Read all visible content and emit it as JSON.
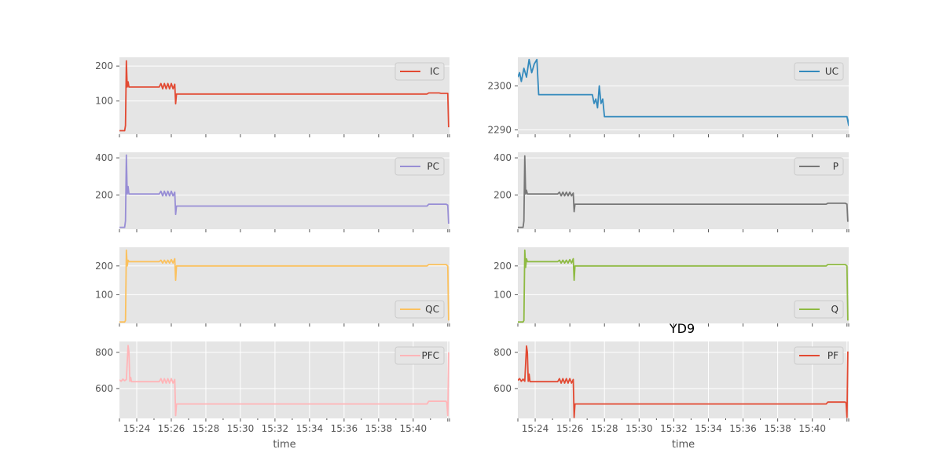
{
  "figure": {
    "title": "YD9"
  },
  "chart_data": [
    {
      "type": "line",
      "series": [
        {
          "name": "IC",
          "color": "#E24A33",
          "points": [
            [
              0,
              15
            ],
            [
              0.3,
              15
            ],
            [
              0.35,
              30
            ],
            [
              0.4,
              215
            ],
            [
              0.45,
              140
            ],
            [
              0.5,
              155
            ],
            [
              0.55,
              140
            ],
            [
              2.3,
              140
            ],
            [
              2.4,
              150
            ],
            [
              2.5,
              135
            ],
            [
              2.6,
              150
            ],
            [
              2.7,
              135
            ],
            [
              2.8,
              150
            ],
            [
              2.9,
              135
            ],
            [
              3,
              150
            ],
            [
              3.1,
              135
            ],
            [
              3.2,
              148
            ],
            [
              3.25,
              92
            ],
            [
              3.3,
              120
            ],
            [
              17.8,
              120
            ],
            [
              17.9,
              123
            ],
            [
              18.5,
              123
            ],
            [
              18.6,
              122
            ],
            [
              19,
              122
            ],
            [
              19.05,
              25
            ]
          ]
        }
      ],
      "ylim": [
        5,
        225
      ],
      "yticks": [
        100,
        200
      ],
      "xlim": [
        0,
        19.1
      ],
      "xticks_show_labels": false,
      "xlabel": ""
    },
    {
      "type": "line",
      "series": [
        {
          "name": "UC",
          "color": "#348ABD",
          "points": [
            [
              0,
              2302
            ],
            [
              0.1,
              2303
            ],
            [
              0.2,
              2301
            ],
            [
              0.35,
              2304
            ],
            [
              0.5,
              2302
            ],
            [
              0.65,
              2306
            ],
            [
              0.8,
              2303
            ],
            [
              0.95,
              2305
            ],
            [
              1.1,
              2306
            ],
            [
              1.2,
              2298
            ],
            [
              4.3,
              2298
            ],
            [
              4.4,
              2296
            ],
            [
              4.5,
              2297
            ],
            [
              4.6,
              2295
            ],
            [
              4.7,
              2300
            ],
            [
              4.8,
              2296
            ],
            [
              4.9,
              2297
            ],
            [
              5.0,
              2293
            ],
            [
              19,
              2293
            ],
            [
              19.1,
              2291
            ],
            [
              19.2,
              2296
            ],
            [
              19.3,
              2292
            ],
            [
              19.4,
              2293
            ]
          ]
        }
      ],
      "ylim": [
        2289,
        2306.5
      ],
      "yticks": [
        2290,
        2300
      ],
      "xlim": [
        0,
        19.1
      ],
      "xticks_show_labels": false,
      "xlabel": ""
    },
    {
      "type": "line",
      "series": [
        {
          "name": "PC",
          "color": "#988ED5",
          "points": [
            [
              0,
              25
            ],
            [
              0.3,
              25
            ],
            [
              0.35,
              60
            ],
            [
              0.4,
              415
            ],
            [
              0.45,
              205
            ],
            [
              0.5,
              245
            ],
            [
              0.55,
              205
            ],
            [
              2.3,
              205
            ],
            [
              2.4,
              220
            ],
            [
              2.5,
              195
            ],
            [
              2.6,
              220
            ],
            [
              2.7,
              195
            ],
            [
              2.8,
              220
            ],
            [
              2.9,
              195
            ],
            [
              3,
              220
            ],
            [
              3.1,
              195
            ],
            [
              3.2,
              215
            ],
            [
              3.25,
              95
            ],
            [
              3.3,
              140
            ],
            [
              17.8,
              140
            ],
            [
              17.9,
              150
            ],
            [
              18.9,
              150
            ],
            [
              19,
              145
            ],
            [
              19.05,
              45
            ]
          ]
        }
      ],
      "ylim": [
        15,
        430
      ],
      "yticks": [
        200,
        400
      ],
      "xlim": [
        0,
        19.1
      ],
      "xticks_show_labels": false,
      "xlabel": ""
    },
    {
      "type": "line",
      "series": [
        {
          "name": "P",
          "color": "#777777",
          "points": [
            [
              0,
              25
            ],
            [
              0.3,
              25
            ],
            [
              0.35,
              60
            ],
            [
              0.4,
              410
            ],
            [
              0.45,
              205
            ],
            [
              0.5,
              225
            ],
            [
              0.55,
              205
            ],
            [
              2.3,
              205
            ],
            [
              2.4,
              215
            ],
            [
              2.5,
              195
            ],
            [
              2.6,
              215
            ],
            [
              2.7,
              195
            ],
            [
              2.8,
              215
            ],
            [
              2.9,
              195
            ],
            [
              3,
              215
            ],
            [
              3.1,
              195
            ],
            [
              3.2,
              210
            ],
            [
              3.25,
              110
            ],
            [
              3.3,
              150
            ],
            [
              17.8,
              150
            ],
            [
              17.9,
              155
            ],
            [
              18.9,
              155
            ],
            [
              19,
              150
            ],
            [
              19.05,
              55
            ]
          ]
        }
      ],
      "ylim": [
        15,
        430
      ],
      "yticks": [
        200,
        400
      ],
      "xlim": [
        0,
        19.1
      ],
      "xticks_show_labels": false,
      "xlabel": ""
    },
    {
      "type": "line",
      "series": [
        {
          "name": "QC",
          "color": "#FBC15E",
          "points": [
            [
              0,
              5
            ],
            [
              0.3,
              5
            ],
            [
              0.35,
              10
            ],
            [
              0.4,
              255
            ],
            [
              0.45,
              200
            ],
            [
              0.5,
              220
            ],
            [
              0.55,
              215
            ],
            [
              2.3,
              215
            ],
            [
              2.4,
              220
            ],
            [
              2.5,
              210
            ],
            [
              2.6,
              220
            ],
            [
              2.7,
              210
            ],
            [
              2.8,
              220
            ],
            [
              2.9,
              210
            ],
            [
              3,
              222
            ],
            [
              3.1,
              210
            ],
            [
              3.2,
              225
            ],
            [
              3.25,
              150
            ],
            [
              3.3,
              200
            ],
            [
              17.8,
              200
            ],
            [
              17.9,
              205
            ],
            [
              18.9,
              205
            ],
            [
              19,
              200
            ],
            [
              19.05,
              10
            ]
          ]
        }
      ],
      "ylim": [
        0,
        265
      ],
      "yticks": [
        100,
        200
      ],
      "xlim": [
        0,
        19.1
      ],
      "xticks_show_labels": false,
      "xlabel": ""
    },
    {
      "type": "line",
      "series": [
        {
          "name": "Q",
          "color": "#8EBA42",
          "points": [
            [
              0,
              5
            ],
            [
              0.3,
              5
            ],
            [
              0.35,
              10
            ],
            [
              0.4,
              255
            ],
            [
              0.45,
              195
            ],
            [
              0.5,
              225
            ],
            [
              0.55,
              215
            ],
            [
              2.3,
              215
            ],
            [
              2.4,
              220
            ],
            [
              2.5,
              210
            ],
            [
              2.6,
              220
            ],
            [
              2.7,
              210
            ],
            [
              2.8,
              220
            ],
            [
              2.9,
              210
            ],
            [
              3,
              222
            ],
            [
              3.1,
              210
            ],
            [
              3.2,
              225
            ],
            [
              3.25,
              150
            ],
            [
              3.3,
              200
            ],
            [
              17.8,
              200
            ],
            [
              17.9,
              205
            ],
            [
              18.9,
              205
            ],
            [
              19,
              200
            ],
            [
              19.05,
              10
            ]
          ]
        }
      ],
      "ylim": [
        0,
        265
      ],
      "yticks": [
        100,
        200
      ],
      "xlim": [
        0,
        19.1
      ],
      "xticks_show_labels": false,
      "xlabel": ""
    },
    {
      "type": "line",
      "series": [
        {
          "name": "PFC",
          "color": "#FFB5B8",
          "points": [
            [
              0,
              648
            ],
            [
              0.1,
              640
            ],
            [
              0.2,
              652
            ],
            [
              0.3,
              643
            ],
            [
              0.4,
              650
            ],
            [
              0.5,
              838
            ],
            [
              0.55,
              800
            ],
            [
              0.6,
              640
            ],
            [
              0.65,
              662
            ],
            [
              0.7,
              638
            ],
            [
              2.3,
              638
            ],
            [
              2.4,
              655
            ],
            [
              2.5,
              630
            ],
            [
              2.6,
              655
            ],
            [
              2.7,
              630
            ],
            [
              2.8,
              655
            ],
            [
              2.9,
              630
            ],
            [
              3,
              655
            ],
            [
              3.1,
              630
            ],
            [
              3.2,
              650
            ],
            [
              3.25,
              450
            ],
            [
              3.3,
              515
            ],
            [
              17.8,
              515
            ],
            [
              17.9,
              530
            ],
            [
              18.9,
              530
            ],
            [
              18.95,
              520
            ],
            [
              19,
              450
            ],
            [
              19.05,
              800
            ]
          ]
        }
      ],
      "ylim": [
        435,
        860
      ],
      "yticks": [
        600,
        800
      ],
      "xlim": [
        0,
        19.1
      ],
      "xticks": [
        1,
        2,
        3,
        4,
        5,
        6,
        7,
        8,
        9,
        10,
        11,
        12,
        13,
        14,
        15,
        16,
        17,
        18,
        19
      ],
      "xtick_labels": [
        "15:24",
        "",
        "15:26",
        "",
        "15:28",
        "",
        "15:30",
        "",
        "15:32",
        "",
        "15:34",
        "",
        "15:36",
        "",
        "15:38",
        "",
        "15:40",
        "",
        ""
      ],
      "xticks_show_labels": true,
      "xlabel": "time"
    },
    {
      "type": "line",
      "series": [
        {
          "name": "PF",
          "color": "#E24A33",
          "points": [
            [
              0,
              645
            ],
            [
              0.1,
              655
            ],
            [
              0.2,
              640
            ],
            [
              0.3,
              652
            ],
            [
              0.4,
              640
            ],
            [
              0.5,
              835
            ],
            [
              0.55,
              800
            ],
            [
              0.6,
              640
            ],
            [
              0.65,
              680
            ],
            [
              0.7,
              638
            ],
            [
              2.3,
              638
            ],
            [
              2.4,
              655
            ],
            [
              2.5,
              630
            ],
            [
              2.6,
              655
            ],
            [
              2.7,
              630
            ],
            [
              2.8,
              655
            ],
            [
              2.9,
              630
            ],
            [
              3,
              655
            ],
            [
              3.1,
              630
            ],
            [
              3.2,
              650
            ],
            [
              3.25,
              440
            ],
            [
              3.3,
              515
            ],
            [
              17.8,
              515
            ],
            [
              17.9,
              525
            ],
            [
              18.9,
              525
            ],
            [
              18.95,
              520
            ],
            [
              19,
              440
            ],
            [
              19.05,
              805
            ]
          ]
        }
      ],
      "ylim": [
        435,
        860
      ],
      "yticks": [
        600,
        800
      ],
      "xlim": [
        0,
        19.1
      ],
      "xticks": [
        1,
        2,
        3,
        4,
        5,
        6,
        7,
        8,
        9,
        10,
        11,
        12,
        13,
        14,
        15,
        16,
        17,
        18,
        19
      ],
      "xtick_labels": [
        "15:24",
        "",
        "15:26",
        "",
        "15:28",
        "",
        "15:30",
        "",
        "15:32",
        "",
        "15:34",
        "",
        "15:36",
        "",
        "15:38",
        "",
        "15:40",
        "",
        ""
      ],
      "xticks_show_labels": true,
      "xlabel": "time"
    }
  ]
}
